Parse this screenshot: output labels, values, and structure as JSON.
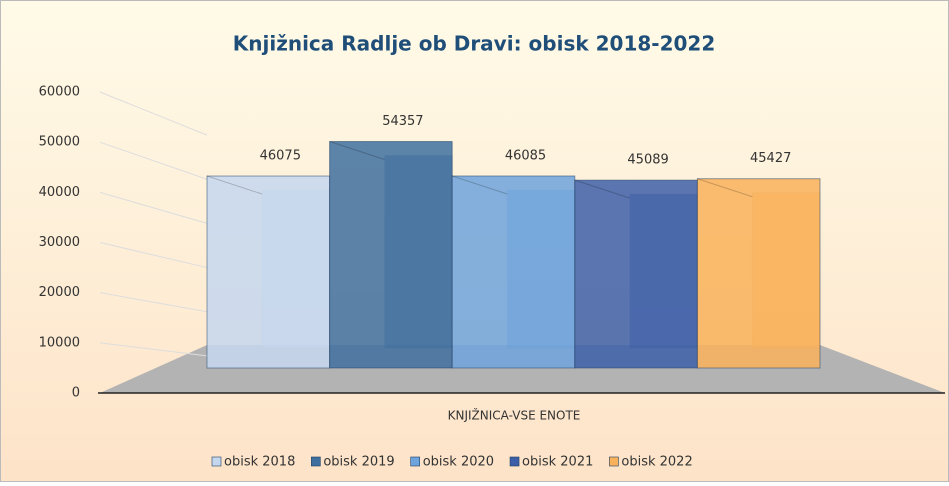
{
  "chart_data": {
    "type": "bar",
    "title": "Knjižnica Radlje ob Dravi: obisk 2018-2022",
    "categories": [
      "KNJIŽNICA-VSE ENOTE"
    ],
    "series": [
      {
        "name": "obisk 2018",
        "color": "#c5d7ee",
        "values": [
          46075
        ]
      },
      {
        "name": "obisk 2019",
        "color": "#3f6f9f",
        "values": [
          54357
        ]
      },
      {
        "name": "obisk 2020",
        "color": "#6fa3dc",
        "values": [
          46085
        ]
      },
      {
        "name": "obisk 2021",
        "color": "#3d5fa8",
        "values": [
          45089
        ]
      },
      {
        "name": "obisk 2022",
        "color": "#f9b25a",
        "values": [
          45427
        ]
      }
    ],
    "ylim": [
      0,
      60000
    ],
    "yticks": [
      0,
      10000,
      20000,
      30000,
      40000,
      50000,
      60000
    ],
    "grid": true,
    "legend": "bottom",
    "data_labels": true
  }
}
